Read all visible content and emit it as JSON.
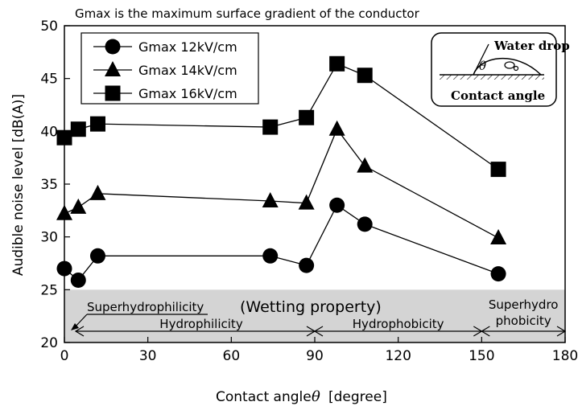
{
  "chart_data": {
    "type": "line",
    "title": "Gmax is the maximum surface gradient of the conductor",
    "xlabel": "Contact angle",
    "xlabel_symbol": "θ",
    "xlabel_unit": "[degree]",
    "ylabel": "Audible noise level [dB(A)]",
    "xlim": [
      0,
      180
    ],
    "ylim": [
      20,
      50
    ],
    "xticks": [
      0,
      30,
      60,
      90,
      120,
      150,
      180
    ],
    "yticks": [
      20,
      25,
      30,
      35,
      40,
      45,
      50
    ],
    "grid": false,
    "legend_position": "top-left",
    "series": [
      {
        "name": "Gmax 12kV/cm",
        "marker": "circle",
        "x": [
          0,
          5,
          12,
          74,
          87,
          98,
          108,
          156
        ],
        "y": [
          27.0,
          25.9,
          28.2,
          28.2,
          27.3,
          33.0,
          31.2,
          26.5
        ]
      },
      {
        "name": "Gmax 14kV/cm",
        "marker": "triangle",
        "x": [
          0,
          5,
          12,
          74,
          87,
          98,
          108,
          156
        ],
        "y": [
          32.2,
          32.8,
          34.1,
          33.4,
          33.2,
          40.2,
          36.7,
          29.9
        ]
      },
      {
        "name": "Gmax 16kV/cm",
        "marker": "square",
        "x": [
          0,
          5,
          12,
          74,
          87,
          98,
          108,
          156
        ],
        "y": [
          39.4,
          40.2,
          40.7,
          40.4,
          41.3,
          46.4,
          45.3,
          36.4
        ]
      }
    ],
    "shaded_band": {
      "y_from": 20,
      "y_to": 25,
      "color": "#d4d4d4"
    },
    "band_title": "(Wetting property)",
    "regions": [
      {
        "label": "Superhydrophilicity",
        "x_from": 0,
        "x_to": 10
      },
      {
        "label": "Hydrophilicity",
        "x_from": 0,
        "x_to": 90
      },
      {
        "label": "Hydrophobicity",
        "x_from": 90,
        "x_to": 150
      },
      {
        "label": "Superhydro",
        "label2": "phobicity",
        "x_from": 150,
        "x_to": 180
      }
    ],
    "inset": {
      "top_label": "Water drop",
      "angle_symbol": "θ",
      "bottom_label": "Contact angle"
    }
  }
}
